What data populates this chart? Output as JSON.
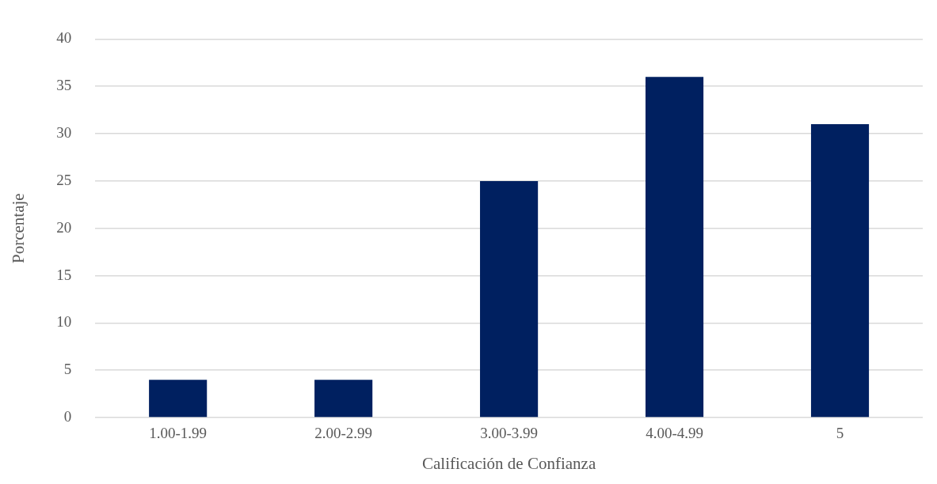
{
  "chart_data": {
    "type": "bar",
    "xlabel": "Calificación de Confianza",
    "ylabel": "Porcentaje",
    "categories": [
      "1.00-1.99",
      "2.00-2.99",
      "3.00-3.99",
      "4.00-4.99",
      "5"
    ],
    "values": [
      4,
      4,
      25,
      36,
      31
    ],
    "color": "#002060",
    "ylim": [
      0,
      40
    ],
    "yticks": [
      0,
      5,
      10,
      15,
      20,
      25,
      30,
      35,
      40
    ],
    "grid": "y"
  }
}
